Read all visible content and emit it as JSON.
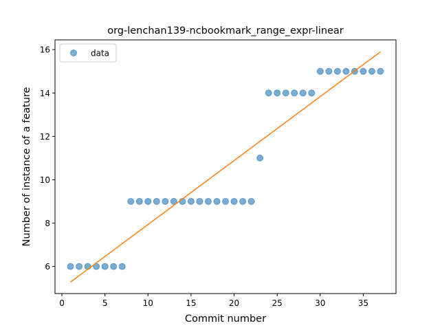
{
  "chart_data": {
    "type": "scatter",
    "title": "org-lenchan139-ncbookmark_range_expr-linear",
    "xlabel": "Commit number",
    "ylabel": "Number of instance of a feature",
    "xlim": [
      -0.8,
      38.8
    ],
    "ylim": [
      4.75,
      16.45
    ],
    "xticks": [
      0,
      5,
      10,
      15,
      20,
      25,
      30,
      35
    ],
    "yticks": [
      6,
      8,
      10,
      12,
      14,
      16
    ],
    "grid": false,
    "legend": {
      "placement": "top-left",
      "entries": [
        "data"
      ]
    },
    "series": [
      {
        "name": "data",
        "kind": "points",
        "color": "#1f77b4",
        "x": [
          1,
          2,
          3,
          4,
          5,
          6,
          7,
          8,
          9,
          10,
          11,
          12,
          13,
          14,
          15,
          16,
          17,
          18,
          19,
          20,
          21,
          22,
          23,
          24,
          25,
          26,
          27,
          28,
          29,
          30,
          31,
          32,
          33,
          34,
          35,
          36,
          37
        ],
        "y": [
          6,
          6,
          6,
          6,
          6,
          6,
          6,
          9,
          9,
          9,
          9,
          9,
          9,
          9,
          9,
          9,
          9,
          9,
          9,
          9,
          9,
          9,
          11,
          14,
          14,
          14,
          14,
          14,
          14,
          15,
          15,
          15,
          15,
          15,
          15,
          15,
          15
        ]
      },
      {
        "kind": "fit-line",
        "color": "#ff7f0e",
        "x": [
          1,
          37
        ],
        "y": [
          5.28,
          15.9
        ]
      }
    ]
  }
}
